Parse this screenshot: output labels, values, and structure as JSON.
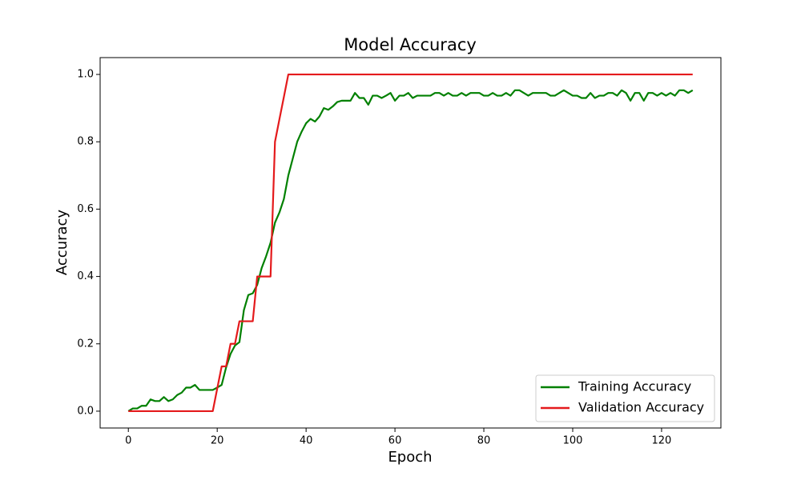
{
  "chart_data": {
    "type": "line",
    "title": "Model Accuracy",
    "x_label": "Epoch",
    "y_label": "Accuracy",
    "x": [
      0,
      1,
      2,
      3,
      4,
      5,
      6,
      7,
      8,
      9,
      10,
      11,
      12,
      13,
      14,
      15,
      16,
      17,
      18,
      19,
      20,
      21,
      22,
      23,
      24,
      25,
      26,
      27,
      28,
      29,
      30,
      31,
      32,
      33,
      34,
      35,
      36,
      37,
      38,
      39,
      40,
      41,
      42,
      43,
      44,
      45,
      46,
      47,
      48,
      49,
      50,
      51,
      52,
      53,
      54,
      55,
      56,
      57,
      58,
      59,
      60,
      61,
      62,
      63,
      64,
      65,
      66,
      67,
      68,
      69,
      70,
      71,
      72,
      73,
      74,
      75,
      76,
      77,
      78,
      79,
      80,
      81,
      82,
      83,
      84,
      85,
      86,
      87,
      88,
      89,
      90,
      91,
      92,
      93,
      94,
      95,
      96,
      97,
      98,
      99,
      100,
      101,
      102,
      103,
      104,
      105,
      106,
      107,
      108,
      109,
      110,
      111,
      112,
      113,
      114,
      115,
      116,
      117,
      118,
      119,
      120,
      121,
      122,
      123,
      124,
      125,
      126,
      127
    ],
    "series": [
      {
        "name": "Training Accuracy",
        "color": "#008000",
        "values": [
          0,
          0.008,
          0.008,
          0.016,
          0.016,
          0.035,
          0.03,
          0.03,
          0.042,
          0.03,
          0.035,
          0.048,
          0.055,
          0.07,
          0.07,
          0.078,
          0.063,
          0.063,
          0.063,
          0.063,
          0.07,
          0.078,
          0.13,
          0.17,
          0.195,
          0.205,
          0.3,
          0.345,
          0.35,
          0.375,
          0.425,
          0.46,
          0.5,
          0.56,
          0.59,
          0.63,
          0.7,
          0.75,
          0.8,
          0.83,
          0.855,
          0.868,
          0.86,
          0.875,
          0.9,
          0.895,
          0.905,
          0.918,
          0.922,
          0.922,
          0.922,
          0.945,
          0.93,
          0.93,
          0.91,
          0.937,
          0.937,
          0.93,
          0.937,
          0.945,
          0.922,
          0.937,
          0.937,
          0.945,
          0.93,
          0.937,
          0.937,
          0.937,
          0.937,
          0.945,
          0.945,
          0.937,
          0.945,
          0.937,
          0.937,
          0.945,
          0.937,
          0.945,
          0.945,
          0.945,
          0.937,
          0.937,
          0.945,
          0.937,
          0.937,
          0.945,
          0.937,
          0.953,
          0.953,
          0.945,
          0.937,
          0.945,
          0.945,
          0.945,
          0.945,
          0.937,
          0.937,
          0.945,
          0.953,
          0.945,
          0.937,
          0.937,
          0.93,
          0.93,
          0.945,
          0.93,
          0.937,
          0.937,
          0.945,
          0.945,
          0.937,
          0.953,
          0.945,
          0.922,
          0.945,
          0.945,
          0.922,
          0.945,
          0.945,
          0.937,
          0.945,
          0.937,
          0.945,
          0.937,
          0.953,
          0.953,
          0.945,
          0.953
        ]
      },
      {
        "name": "Validation Accuracy",
        "color": "#e41a1c",
        "values": [
          0,
          0,
          0,
          0,
          0,
          0,
          0,
          0,
          0,
          0,
          0,
          0,
          0,
          0,
          0,
          0,
          0,
          0,
          0,
          0,
          0.067,
          0.133,
          0.133,
          0.2,
          0.2,
          0.267,
          0.267,
          0.267,
          0.267,
          0.4,
          0.4,
          0.4,
          0.4,
          0.8,
          0.867,
          0.933,
          1,
          1,
          1,
          1,
          1,
          1,
          1,
          1,
          1,
          1,
          1,
          1,
          1,
          1,
          1,
          1,
          1,
          1,
          1,
          1,
          1,
          1,
          1,
          1,
          1,
          1,
          1,
          1,
          1,
          1,
          1,
          1,
          1,
          1,
          1,
          1,
          1,
          1,
          1,
          1,
          1,
          1,
          1,
          1,
          1,
          1,
          1,
          1,
          1,
          1,
          1,
          1,
          1,
          1,
          1,
          1,
          1,
          1,
          1,
          1,
          1,
          1,
          1,
          1,
          1,
          1,
          1,
          1,
          1,
          1,
          1,
          1,
          1,
          1,
          1,
          1,
          1,
          1,
          1,
          1,
          1,
          1,
          1,
          1,
          1,
          1,
          1,
          1,
          1,
          1,
          1,
          1
        ]
      }
    ],
    "xlim": [
      -6.35,
      133.35
    ],
    "ylim": [
      -0.05,
      1.05
    ],
    "xticks": [
      0,
      20,
      40,
      60,
      80,
      100,
      120
    ],
    "yticks": [
      {
        "value": 0,
        "label": "0.0"
      },
      {
        "value": 0.2,
        "label": "0.2"
      },
      {
        "value": 0.4,
        "label": "0.4"
      },
      {
        "value": 0.6,
        "label": "0.6"
      },
      {
        "value": 0.8,
        "label": "0.8"
      },
      {
        "value": 1,
        "label": "1.0"
      }
    ],
    "legend": "lower right",
    "grid": false
  }
}
